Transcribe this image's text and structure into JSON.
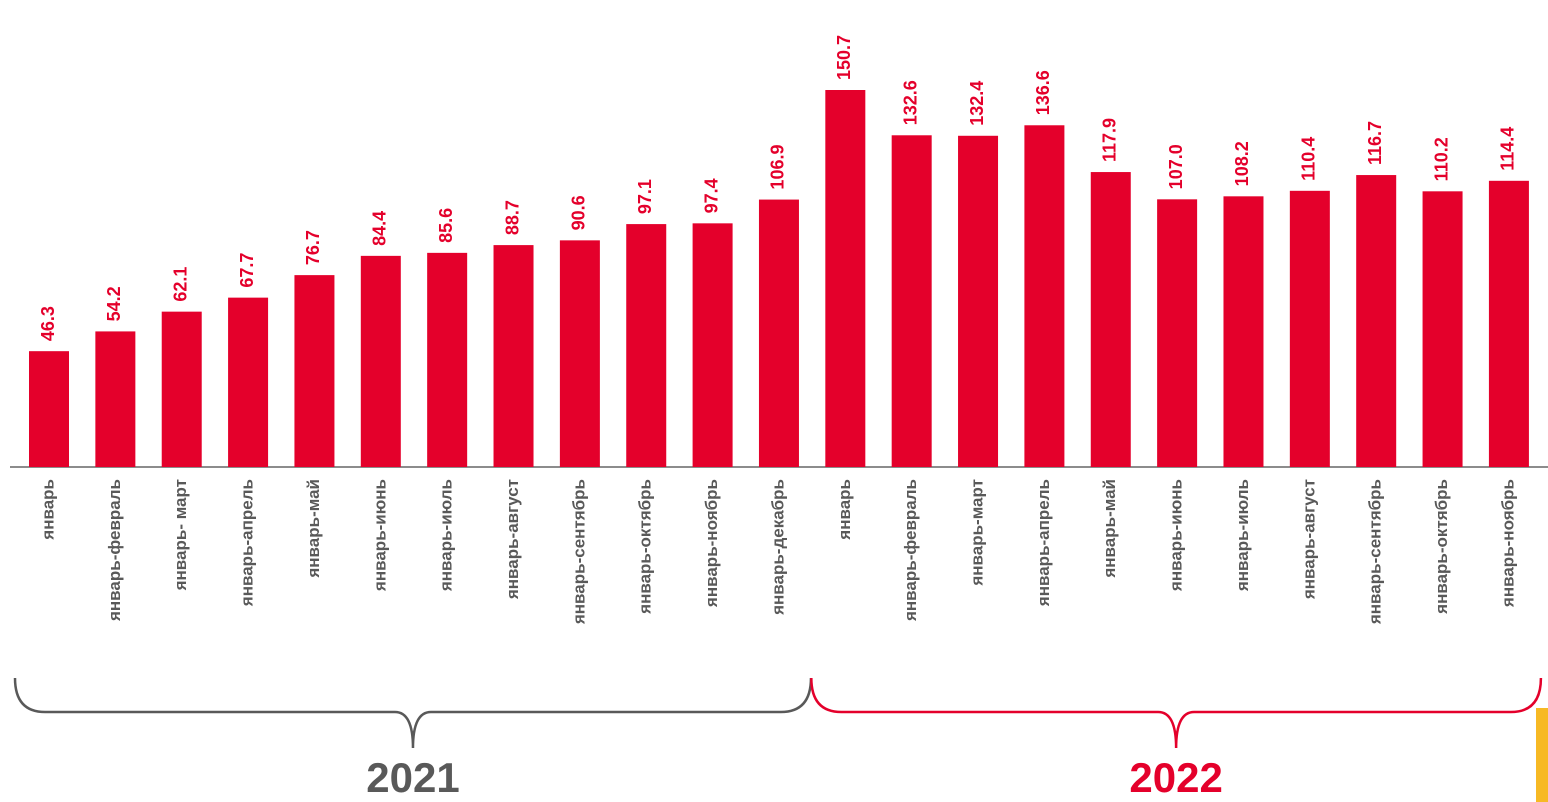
{
  "chart_data": {
    "type": "bar",
    "color": "#e4002b",
    "groups": [
      {
        "name": "2021",
        "color": "#595959",
        "categories": [
          "январь",
          "январь-февраль",
          "январь- март",
          "январь-апрель",
          "январь-май",
          "январь-июнь",
          "январь-июль",
          "январь-август",
          "январь-сентябрь",
          "январь-октябрь",
          "январь-ноябрь",
          "январь-декабрь"
        ],
        "values": [
          46.3,
          54.2,
          62.1,
          67.7,
          76.7,
          84.4,
          85.6,
          88.7,
          90.6,
          97.1,
          97.4,
          106.9
        ],
        "value_labels": [
          "46.3",
          "54.2",
          "62.1",
          "67.7",
          "76.7",
          "84.4",
          "85.6",
          "88.7",
          "90.6",
          "97.1",
          "97.4",
          "106.9"
        ]
      },
      {
        "name": "2022",
        "color": "#e4002b",
        "categories": [
          "январь",
          "январь-февраль",
          "январь-март",
          "январь-апрель",
          "январь-май",
          "январь-июнь",
          "январь-июль",
          "январь-август",
          "январь-сентябрь",
          "январь-октябрь",
          "январь-ноябрь"
        ],
        "values": [
          150.7,
          132.6,
          132.4,
          136.6,
          117.9,
          107.0,
          108.2,
          110.4,
          116.7,
          110.2,
          114.4
        ],
        "value_labels": [
          "150.7",
          "132.6",
          "132.4",
          "136.6",
          "117.9",
          "107.0",
          "108.2",
          "110.4",
          "116.7",
          "110.2",
          "114.4"
        ]
      }
    ]
  }
}
